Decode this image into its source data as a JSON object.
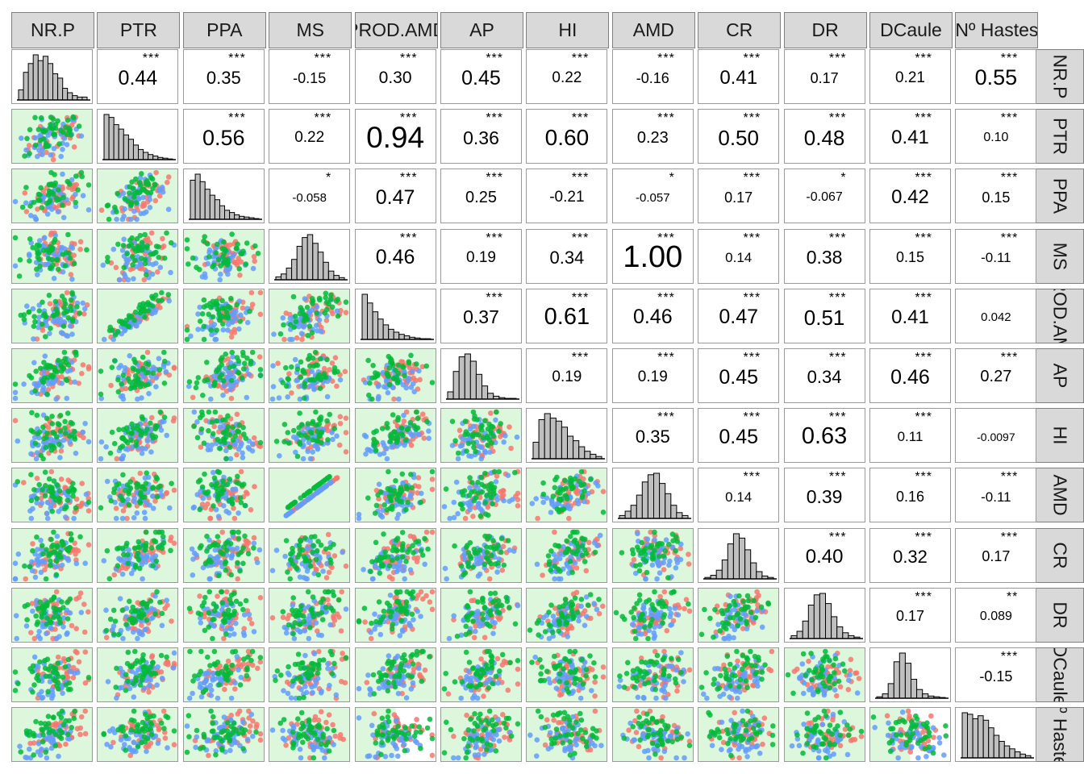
{
  "variables": [
    "NR.P",
    "PTR",
    "PPA",
    "MS",
    "PROD.AMD",
    "AP",
    "HI",
    "AMD",
    "CR",
    "DR",
    "DCaule",
    "Nº Hastes"
  ],
  "colors": {
    "group_red": "#f8766d",
    "group_blue": "#619cff",
    "group_green": "#00ba38",
    "panel_green_bg": "#ddf7dd",
    "strip_bg": "#d9d9d9",
    "histogram_fill": "#bfbfbf"
  },
  "chart_data": {
    "type": "scatter-matrix",
    "diagonal_type": "histogram",
    "lower_type": "scatter",
    "upper_type": "correlation",
    "series": [
      {
        "name": "",
        "color": "#f8766d"
      },
      {
        "name": "",
        "color": "#619cff"
      },
      {
        "name": "",
        "color": "#00ba38"
      }
    ],
    "correlations": [
      {
        "row": "NR.P",
        "col": "PTR",
        "r": "0.44",
        "stars": "***"
      },
      {
        "row": "NR.P",
        "col": "PPA",
        "r": "0.35",
        "stars": "***"
      },
      {
        "row": "NR.P",
        "col": "MS",
        "r": "-0.15",
        "stars": "***"
      },
      {
        "row": "NR.P",
        "col": "PROD.AMD",
        "r": "0.30",
        "stars": "***"
      },
      {
        "row": "NR.P",
        "col": "AP",
        "r": "0.45",
        "stars": "***"
      },
      {
        "row": "NR.P",
        "col": "HI",
        "r": "0.22",
        "stars": "***"
      },
      {
        "row": "NR.P",
        "col": "AMD",
        "r": "-0.16",
        "stars": "***"
      },
      {
        "row": "NR.P",
        "col": "CR",
        "r": "0.41",
        "stars": "***"
      },
      {
        "row": "NR.P",
        "col": "DR",
        "r": "0.17",
        "stars": "***"
      },
      {
        "row": "NR.P",
        "col": "DCaule",
        "r": "0.21",
        "stars": "***"
      },
      {
        "row": "NR.P",
        "col": "Nº Hastes",
        "r": "0.55",
        "stars": "***"
      },
      {
        "row": "PTR",
        "col": "PPA",
        "r": "0.56",
        "stars": "***"
      },
      {
        "row": "PTR",
        "col": "MS",
        "r": "0.22",
        "stars": "***"
      },
      {
        "row": "PTR",
        "col": "PROD.AMD",
        "r": "0.94",
        "stars": "***"
      },
      {
        "row": "PTR",
        "col": "AP",
        "r": "0.36",
        "stars": "***"
      },
      {
        "row": "PTR",
        "col": "HI",
        "r": "0.60",
        "stars": "***"
      },
      {
        "row": "PTR",
        "col": "AMD",
        "r": "0.23",
        "stars": "***"
      },
      {
        "row": "PTR",
        "col": "CR",
        "r": "0.50",
        "stars": "***"
      },
      {
        "row": "PTR",
        "col": "DR",
        "r": "0.48",
        "stars": "***"
      },
      {
        "row": "PTR",
        "col": "DCaule",
        "r": "0.41",
        "stars": "***"
      },
      {
        "row": "PTR",
        "col": "Nº Hastes",
        "r": "0.10",
        "stars": "***"
      },
      {
        "row": "PPA",
        "col": "MS",
        "r": "-0.058",
        "stars": "*"
      },
      {
        "row": "PPA",
        "col": "PROD.AMD",
        "r": "0.47",
        "stars": "***"
      },
      {
        "row": "PPA",
        "col": "AP",
        "r": "0.25",
        "stars": "***"
      },
      {
        "row": "PPA",
        "col": "HI",
        "r": "-0.21",
        "stars": "***"
      },
      {
        "row": "PPA",
        "col": "AMD",
        "r": "-0.057",
        "stars": "*"
      },
      {
        "row": "PPA",
        "col": "CR",
        "r": "0.17",
        "stars": "***"
      },
      {
        "row": "PPA",
        "col": "DR",
        "r": "-0.067",
        "stars": "*"
      },
      {
        "row": "PPA",
        "col": "DCaule",
        "r": "0.42",
        "stars": "***"
      },
      {
        "row": "PPA",
        "col": "Nº Hastes",
        "r": "0.15",
        "stars": "***"
      },
      {
        "row": "MS",
        "col": "PROD.AMD",
        "r": "0.46",
        "stars": "***"
      },
      {
        "row": "MS",
        "col": "AP",
        "r": "0.19",
        "stars": "***"
      },
      {
        "row": "MS",
        "col": "HI",
        "r": "0.34",
        "stars": "***"
      },
      {
        "row": "MS",
        "col": "AMD",
        "r": "1.00",
        "stars": "***"
      },
      {
        "row": "MS",
        "col": "CR",
        "r": "0.14",
        "stars": "***"
      },
      {
        "row": "MS",
        "col": "DR",
        "r": "0.38",
        "stars": "***"
      },
      {
        "row": "MS",
        "col": "DCaule",
        "r": "0.15",
        "stars": "***"
      },
      {
        "row": "MS",
        "col": "Nº Hastes",
        "r": "-0.11",
        "stars": "***"
      },
      {
        "row": "PROD.AMD",
        "col": "AP",
        "r": "0.37",
        "stars": "***"
      },
      {
        "row": "PROD.AMD",
        "col": "HI",
        "r": "0.61",
        "stars": "***"
      },
      {
        "row": "PROD.AMD",
        "col": "AMD",
        "r": "0.46",
        "stars": "***"
      },
      {
        "row": "PROD.AMD",
        "col": "CR",
        "r": "0.47",
        "stars": "***"
      },
      {
        "row": "PROD.AMD",
        "col": "DR",
        "r": "0.51",
        "stars": "***"
      },
      {
        "row": "PROD.AMD",
        "col": "DCaule",
        "r": "0.41",
        "stars": "***"
      },
      {
        "row": "PROD.AMD",
        "col": "Nº Hastes",
        "r": "0.042",
        "stars": ""
      },
      {
        "row": "AP",
        "col": "HI",
        "r": "0.19",
        "stars": "***"
      },
      {
        "row": "AP",
        "col": "AMD",
        "r": "0.19",
        "stars": "***"
      },
      {
        "row": "AP",
        "col": "CR",
        "r": "0.45",
        "stars": "***"
      },
      {
        "row": "AP",
        "col": "DR",
        "r": "0.34",
        "stars": "***"
      },
      {
        "row": "AP",
        "col": "DCaule",
        "r": "0.46",
        "stars": "***"
      },
      {
        "row": "AP",
        "col": "Nº Hastes",
        "r": "0.27",
        "stars": "***"
      },
      {
        "row": "HI",
        "col": "AMD",
        "r": "0.35",
        "stars": "***"
      },
      {
        "row": "HI",
        "col": "CR",
        "r": "0.45",
        "stars": "***"
      },
      {
        "row": "HI",
        "col": "DR",
        "r": "0.63",
        "stars": "***"
      },
      {
        "row": "HI",
        "col": "DCaule",
        "r": "0.11",
        "stars": "***"
      },
      {
        "row": "HI",
        "col": "Nº Hastes",
        "r": "-0.0097",
        "stars": ""
      },
      {
        "row": "AMD",
        "col": "CR",
        "r": "0.14",
        "stars": "***"
      },
      {
        "row": "AMD",
        "col": "DR",
        "r": "0.39",
        "stars": "***"
      },
      {
        "row": "AMD",
        "col": "DCaule",
        "r": "0.16",
        "stars": "***"
      },
      {
        "row": "AMD",
        "col": "Nº Hastes",
        "r": "-0.11",
        "stars": "***"
      },
      {
        "row": "CR",
        "col": "DR",
        "r": "0.40",
        "stars": "***"
      },
      {
        "row": "CR",
        "col": "DCaule",
        "r": "0.32",
        "stars": "***"
      },
      {
        "row": "CR",
        "col": "Nº Hastes",
        "r": "0.17",
        "stars": "***"
      },
      {
        "row": "DR",
        "col": "DCaule",
        "r": "0.17",
        "stars": "***"
      },
      {
        "row": "DR",
        "col": "Nº Hastes",
        "r": "0.089",
        "stars": "**"
      },
      {
        "row": "DCaule",
        "col": "Nº Hastes",
        "r": "-0.15",
        "stars": "***"
      }
    ],
    "histograms": {
      "NR.P": [
        14,
        38,
        50,
        62,
        54,
        60,
        50,
        36,
        30,
        16,
        10,
        6,
        4,
        4
      ],
      "PTR": [
        62,
        58,
        48,
        42,
        34,
        28,
        20,
        14,
        10,
        7,
        5,
        3,
        2,
        1
      ],
      "PPA": [
        52,
        60,
        50,
        40,
        32,
        26,
        18,
        12,
        9,
        6,
        4,
        3,
        2,
        1
      ],
      "MS": [
        4,
        8,
        16,
        28,
        46,
        58,
        62,
        50,
        38,
        24,
        12,
        6,
        3
      ],
      "PROD.AMD": [
        62,
        50,
        38,
        28,
        20,
        14,
        10,
        7,
        5,
        3,
        2,
        1,
        1
      ],
      "AP": [
        10,
        38,
        58,
        62,
        52,
        34,
        18,
        8,
        4,
        2,
        1,
        1
      ],
      "HI": [
        22,
        52,
        60,
        54,
        50,
        42,
        30,
        24,
        16,
        10,
        6,
        3
      ],
      "AMD": [
        4,
        10,
        18,
        32,
        50,
        60,
        62,
        48,
        34,
        18,
        8,
        4
      ],
      "CR": [
        2,
        5,
        12,
        26,
        48,
        62,
        56,
        40,
        22,
        10,
        4,
        2
      ],
      "DR": [
        4,
        10,
        24,
        46,
        60,
        62,
        48,
        30,
        16,
        8,
        4,
        2
      ],
      "DCaule": [
        2,
        6,
        20,
        50,
        62,
        48,
        26,
        12,
        6,
        3,
        2,
        1
      ],
      "Nº Hastes": [
        60,
        58,
        52,
        56,
        50,
        40,
        30,
        22,
        16,
        12,
        8,
        5,
        3
      ]
    },
    "grid": false,
    "legend": "none"
  }
}
